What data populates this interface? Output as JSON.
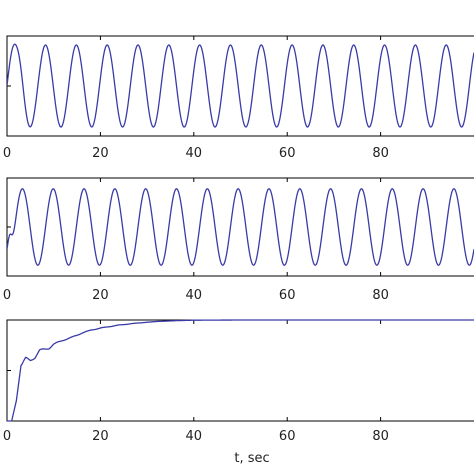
{
  "colors": {
    "line": "#3a3aa8",
    "axis": "#000000",
    "background": "#ffffff"
  },
  "chart_data": [
    {
      "type": "line",
      "panel": 1,
      "xlabel": "",
      "ylabel": "",
      "xlim": [
        0,
        100
      ],
      "ylim": [
        -1,
        1
      ],
      "x_ticks": [
        0,
        20,
        40,
        60,
        80
      ],
      "grid": false,
      "series": [
        {
          "kind": "sinusoid",
          "x_start": 0,
          "x_end": 100,
          "period": 6.6,
          "amplitude": 0.82,
          "offset": 0.0,
          "phase_deg": 0,
          "initial_peak": {
            "x": 2.2,
            "y": 0.9
          }
        }
      ]
    },
    {
      "type": "line",
      "panel": 2,
      "xlabel": "",
      "ylabel": "",
      "xlim": [
        0,
        100
      ],
      "ylim": [
        -1,
        1
      ],
      "x_ticks": [
        0,
        20,
        40,
        60,
        80
      ],
      "grid": false,
      "series": [
        {
          "kind": "sinusoid",
          "x_start": 0,
          "x_end": 100,
          "period": 6.6,
          "amplitude": 0.78,
          "offset": 0.0,
          "phase_deg": -90,
          "initial_bump": {
            "x": 0.6,
            "y": 0.18
          }
        }
      ]
    },
    {
      "type": "line",
      "panel": 3,
      "xlabel": "t, sec",
      "ylabel": "",
      "xlim": [
        0,
        100
      ],
      "ylim": [
        0,
        1
      ],
      "x_ticks": [
        0,
        20,
        40,
        60,
        80
      ],
      "grid": false,
      "series": [
        {
          "kind": "rising_step",
          "x_start": 0,
          "x_end": 100,
          "final_value": 1.0,
          "points": [
            [
              0,
              0
            ],
            [
              1,
              0.0
            ],
            [
              2,
              0.2
            ],
            [
              3,
              0.55
            ],
            [
              4,
              0.62
            ],
            [
              5,
              0.6
            ],
            [
              6,
              0.63
            ],
            [
              7,
              0.7
            ],
            [
              8,
              0.71
            ],
            [
              9,
              0.72
            ],
            [
              10,
              0.76
            ],
            [
              12,
              0.8
            ],
            [
              14,
              0.83
            ],
            [
              16,
              0.87
            ],
            [
              18,
              0.9
            ],
            [
              20,
              0.92
            ],
            [
              24,
              0.95
            ],
            [
              28,
              0.97
            ],
            [
              32,
              0.985
            ],
            [
              36,
              0.993
            ],
            [
              40,
              0.998
            ],
            [
              50,
              1.0
            ],
            [
              100,
              1.0
            ]
          ]
        }
      ]
    }
  ]
}
